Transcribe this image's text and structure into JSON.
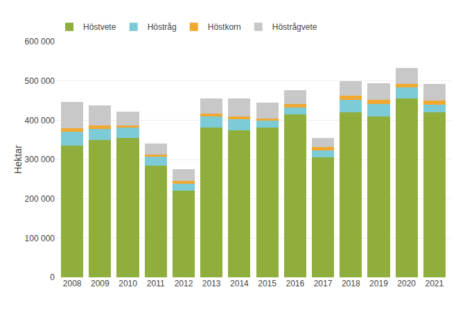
{
  "chart_data": {
    "type": "bar",
    "stacked": true,
    "categories": [
      "2008",
      "2009",
      "2010",
      "2011",
      "2012",
      "2013",
      "2014",
      "2015",
      "2016",
      "2017",
      "2018",
      "2019",
      "2020",
      "2021"
    ],
    "series": [
      {
        "name": "Höstvete",
        "color": "#8fae3c",
        "values": [
          335000,
          350000,
          355000,
          285000,
          220000,
          382000,
          375000,
          382000,
          415000,
          305000,
          420000,
          410000,
          455000,
          420000
        ]
      },
      {
        "name": "Höstråg",
        "color": "#7ecbd8",
        "values": [
          36000,
          28000,
          26000,
          22000,
          18000,
          28000,
          28000,
          16000,
          18000,
          18000,
          32000,
          32000,
          28000,
          20000
        ]
      },
      {
        "name": "Höstkorn",
        "color": "#f0a830",
        "values": [
          8000,
          8000,
          5000,
          6000,
          7000,
          7000,
          7000,
          7000,
          8000,
          8000,
          10000,
          10000,
          10000,
          10000
        ]
      },
      {
        "name": "Höstrågvete",
        "color": "#c8c8c8",
        "values": [
          68000,
          52000,
          36000,
          27000,
          30000,
          38000,
          46000,
          40000,
          36000,
          24000,
          38000,
          42000,
          40000,
          42000
        ]
      }
    ],
    "ylabel": "Hektar",
    "ylim": [
      0,
      600000
    ],
    "yticks": [
      0,
      {
        "value": 100000,
        "label": "100 000"
      },
      {
        "value": 200000,
        "label": "200 000"
      },
      {
        "value": 300000,
        "label": "300 000"
      },
      {
        "value": 400000,
        "label": "400 000"
      },
      {
        "value": 500000,
        "label": "500 000"
      },
      {
        "value": 600000,
        "label": "600 000"
      }
    ],
    "grid": true,
    "legend": "upper left"
  }
}
